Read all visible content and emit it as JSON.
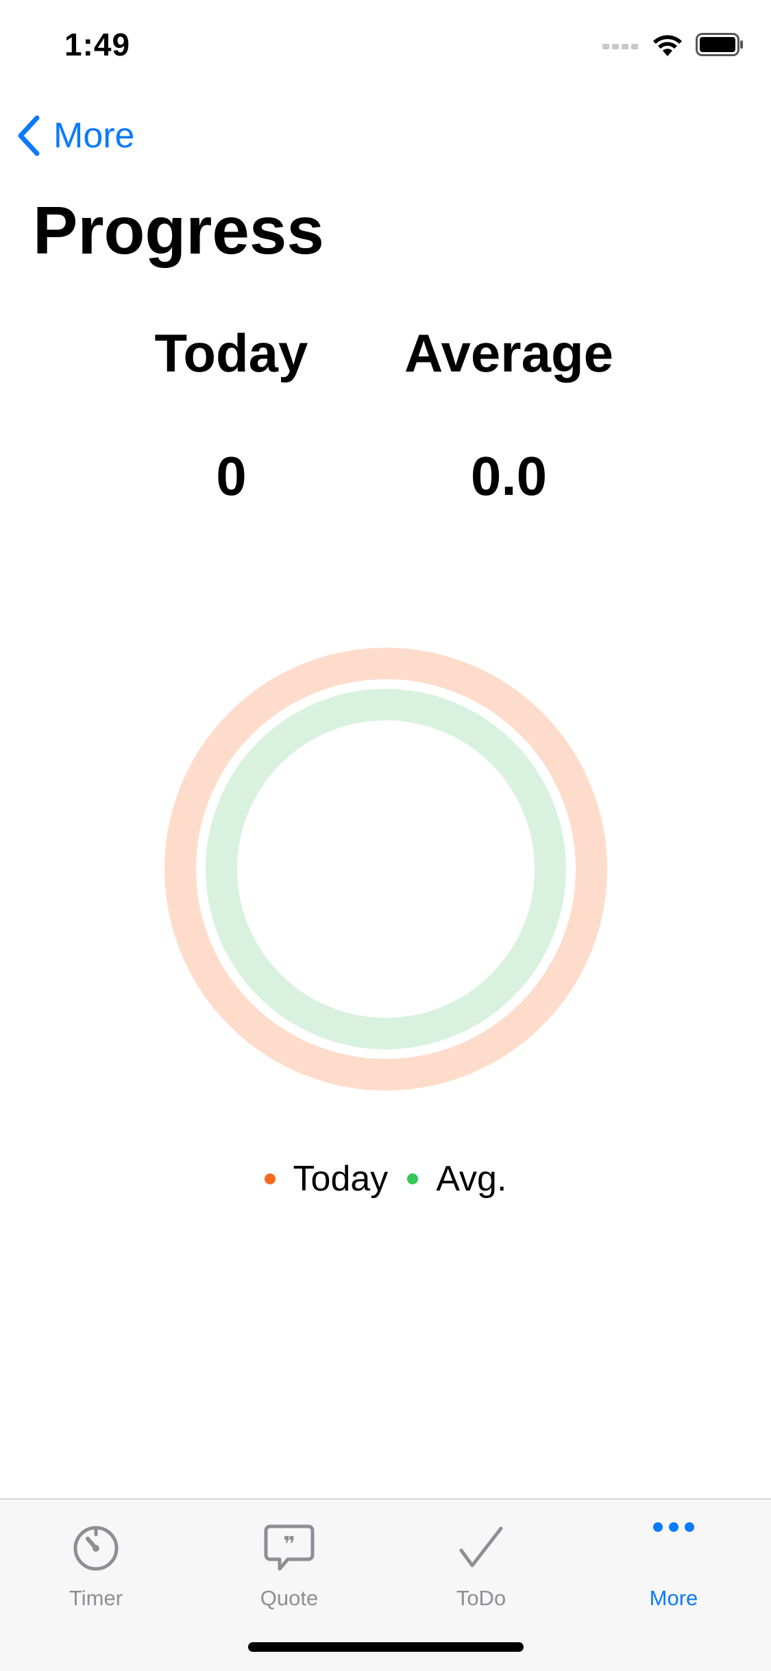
{
  "status_bar": {
    "time": "1:49"
  },
  "nav": {
    "back_label": "More"
  },
  "page": {
    "title": "Progress"
  },
  "stats": {
    "today_label": "Today",
    "today_value": "0",
    "average_label": "Average",
    "average_value": "0.0"
  },
  "rings": {
    "today_ring_color": "#fedccb",
    "avg_ring_color": "#d9f2e0",
    "today_progress": 0,
    "avg_progress": 0
  },
  "legend": {
    "items": [
      {
        "label": "Today",
        "color": "#f56a1f"
      },
      {
        "label": "Avg.",
        "color": "#34c759"
      }
    ]
  },
  "tab_bar": {
    "tabs": [
      {
        "label": "Timer",
        "icon": "timer-icon",
        "active": false
      },
      {
        "label": "Quote",
        "icon": "quote-bubble-icon",
        "active": false
      },
      {
        "label": "ToDo",
        "icon": "checkmark-icon",
        "active": false
      },
      {
        "label": "More",
        "icon": "more-dots-icon",
        "active": true
      }
    ],
    "active_color": "#0a7aff",
    "inactive_color": "#8e8e93"
  }
}
